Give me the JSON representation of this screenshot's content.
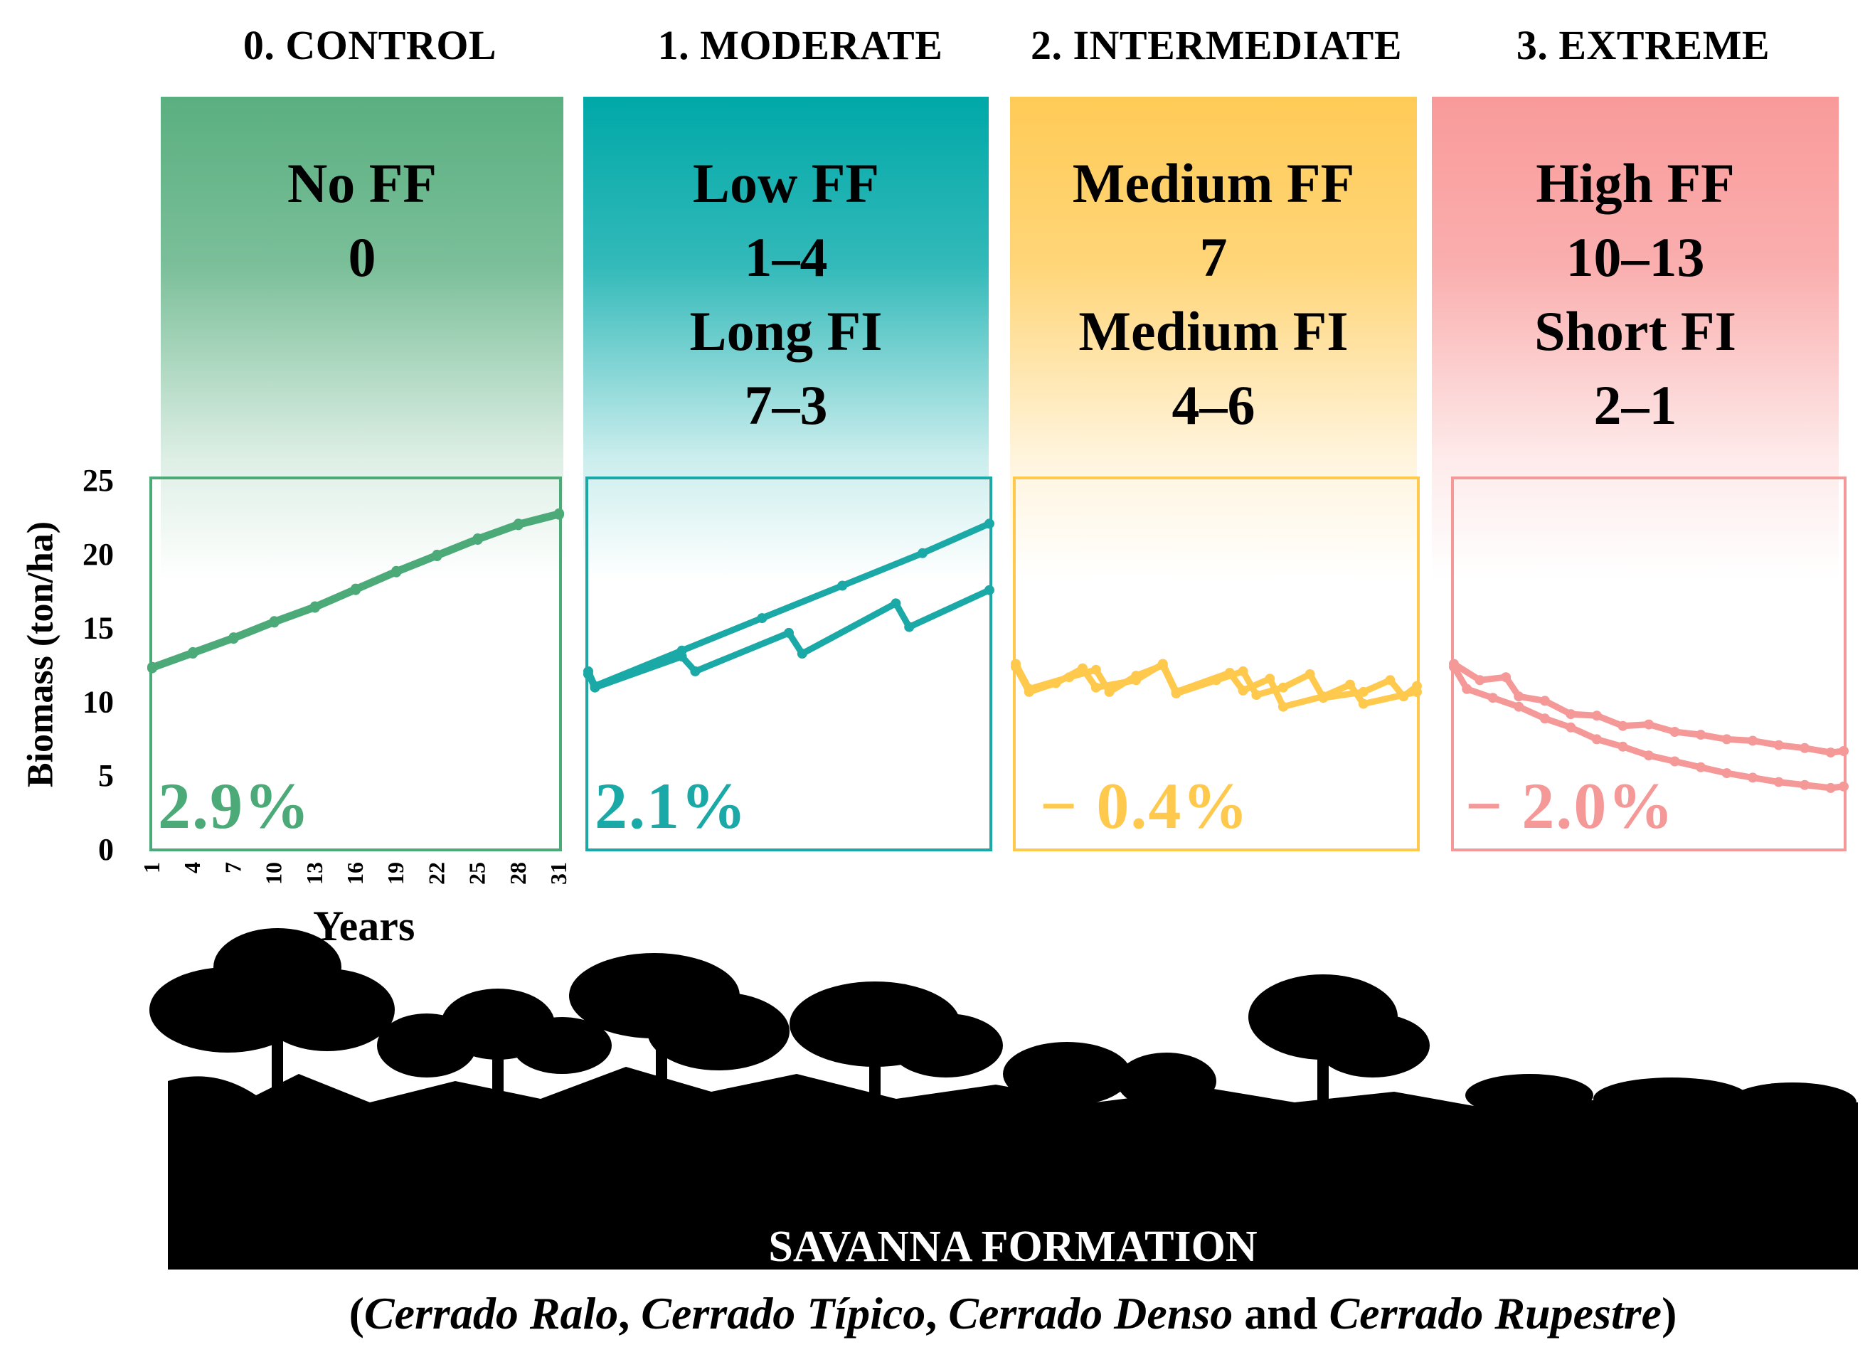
{
  "scenarios": [
    {
      "title": "0. CONTROL",
      "lines": [
        "No FF",
        "0"
      ],
      "rate": "2.9%",
      "color": "#4caa78",
      "banner_color": "#5aaf80"
    },
    {
      "title": "1. MODERATE",
      "lines": [
        "Low FF",
        "1–4",
        "Long FI",
        "7–3"
      ],
      "rate": "2.1%",
      "color": "#1aa9a6",
      "banner_color": "#00a8a8"
    },
    {
      "title": "2. INTERMEDIATE",
      "lines": [
        "Medium FF",
        "7",
        "Medium FI",
        "4–6"
      ],
      "rate": "− 0.4%",
      "color": "#ffc94d",
      "banner_color": "#ffcb57"
    },
    {
      "title": "3. EXTREME",
      "lines": [
        "High FF",
        "10–13",
        "Short FI",
        "2–1"
      ],
      "rate": "− 2.0%",
      "color": "#f59898",
      "banner_color": "#f99a9a"
    }
  ],
  "chart_data": {
    "type": "line",
    "ylabel": "Biomass (ton/ha)",
    "xlabel": "Years",
    "ylim": [
      0,
      25
    ],
    "yticks": [
      "0",
      "5",
      "10",
      "15",
      "20",
      "25"
    ],
    "xlim": [
      1,
      31
    ],
    "xticks": [
      "1",
      "4",
      "7",
      "10",
      "13",
      "16",
      "19",
      "22",
      "25",
      "28",
      "31"
    ],
    "panels": [
      {
        "scenario": "0. CONTROL",
        "series": [
          {
            "name": "upper",
            "values": [
              [
                1,
                12.3
              ],
              [
                4,
                13.3
              ],
              [
                7,
                14.3
              ],
              [
                10,
                15.4
              ],
              [
                13,
                16.4
              ],
              [
                16,
                17.6
              ],
              [
                19,
                18.8
              ],
              [
                22,
                19.9
              ],
              [
                25,
                21.0
              ],
              [
                28,
                22.0
              ],
              [
                31,
                22.7
              ]
            ]
          },
          {
            "name": "lower",
            "values": [
              [
                1,
                12.2
              ],
              [
                4,
                13.2
              ],
              [
                7,
                14.2
              ],
              [
                10,
                15.3
              ],
              [
                13,
                16.3
              ],
              [
                16,
                17.5
              ],
              [
                19,
                18.7
              ],
              [
                22,
                19.8
              ],
              [
                25,
                20.9
              ],
              [
                28,
                21.9
              ],
              [
                31,
                22.6
              ]
            ]
          }
        ]
      },
      {
        "scenario": "1. MODERATE",
        "series": [
          {
            "name": "upper",
            "values": [
              [
                1,
                12.0
              ],
              [
                1.5,
                11.0
              ],
              [
                8,
                13.4
              ],
              [
                14,
                15.6
              ],
              [
                20,
                17.8
              ],
              [
                26,
                20.0
              ],
              [
                31,
                22.0
              ]
            ]
          },
          {
            "name": "lower",
            "values": [
              [
                1,
                11.8
              ],
              [
                1.5,
                10.9
              ],
              [
                8,
                13.0
              ],
              [
                9,
                12.0
              ],
              [
                16,
                14.6
              ],
              [
                17,
                13.2
              ],
              [
                24,
                16.6
              ],
              [
                25,
                15.0
              ],
              [
                31,
                17.5
              ]
            ]
          }
        ]
      },
      {
        "scenario": "2. INTERMEDIATE",
        "series": [
          {
            "name": "upper",
            "values": [
              [
                1,
                12.5
              ],
              [
                2,
                10.8
              ],
              [
                5,
                11.6
              ],
              [
                7,
                12.1
              ],
              [
                8,
                10.6
              ],
              [
                10,
                11.7
              ],
              [
                12,
                12.4
              ],
              [
                13,
                10.5
              ],
              [
                16,
                11.4
              ],
              [
                18,
                12.0
              ],
              [
                19,
                10.4
              ],
              [
                21,
                10.9
              ],
              [
                23,
                11.8
              ],
              [
                24,
                10.2
              ],
              [
                27,
                10.6
              ],
              [
                29,
                11.4
              ],
              [
                30,
                10.3
              ],
              [
                31,
                11.0
              ]
            ]
          },
          {
            "name": "lower",
            "values": [
              [
                1,
                12.3
              ],
              [
                2,
                10.6
              ],
              [
                4,
                11.2
              ],
              [
                6,
                12.2
              ],
              [
                7,
                10.9
              ],
              [
                10,
                11.4
              ],
              [
                12,
                12.5
              ],
              [
                13,
                10.6
              ],
              [
                17,
                11.9
              ],
              [
                18,
                10.7
              ],
              [
                20,
                11.5
              ],
              [
                21,
                9.6
              ],
              [
                24,
                10.3
              ],
              [
                26,
                11.1
              ],
              [
                27,
                9.8
              ],
              [
                31,
                10.6
              ]
            ]
          }
        ]
      },
      {
        "scenario": "3. EXTREME",
        "series": [
          {
            "name": "upper",
            "values": [
              [
                1,
                12.5
              ],
              [
                3,
                11.4
              ],
              [
                5,
                11.6
              ],
              [
                6,
                10.3
              ],
              [
                8,
                10.0
              ],
              [
                10,
                9.1
              ],
              [
                12,
                9.0
              ],
              [
                14,
                8.3
              ],
              [
                16,
                8.4
              ],
              [
                18,
                7.9
              ],
              [
                20,
                7.7
              ],
              [
                22,
                7.4
              ],
              [
                24,
                7.3
              ],
              [
                26,
                7.0
              ],
              [
                28,
                6.8
              ],
              [
                30,
                6.5
              ],
              [
                31,
                6.6
              ]
            ]
          },
          {
            "name": "lower",
            "values": [
              [
                1,
                12.3
              ],
              [
                2,
                10.8
              ],
              [
                4,
                10.2
              ],
              [
                6,
                9.6
              ],
              [
                8,
                8.8
              ],
              [
                10,
                8.2
              ],
              [
                12,
                7.4
              ],
              [
                14,
                6.9
              ],
              [
                16,
                6.3
              ],
              [
                18,
                5.9
              ],
              [
                20,
                5.5
              ],
              [
                22,
                5.1
              ],
              [
                24,
                4.8
              ],
              [
                26,
                4.5
              ],
              [
                28,
                4.3
              ],
              [
                30,
                4.1
              ],
              [
                31,
                4.2
              ]
            ]
          }
        ]
      }
    ]
  },
  "silhouette": {
    "label": "SAVANNA FORMATION"
  },
  "caption": {
    "open": "(",
    "t1": "Cerrado Ralo",
    "sep1": ", ",
    "t2": "Cerrado Típico",
    "sep2": ", ",
    "t3": "Cerrado Denso",
    "and": " and ",
    "t4": "Cerrado Rupestre",
    "close": ")"
  }
}
